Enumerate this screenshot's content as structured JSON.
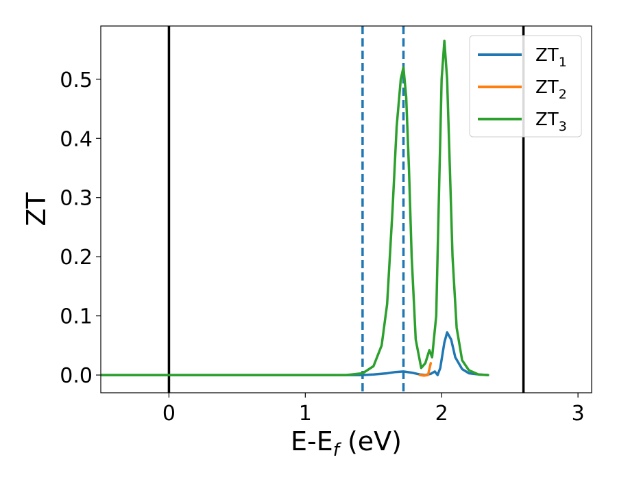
{
  "chart_data": {
    "type": "line",
    "title": "",
    "xlabel": {
      "main": "E-E",
      "sub": "f",
      "unit": " (eV)"
    },
    "ylabel": "ZT",
    "xlim": [
      -0.5,
      3.1
    ],
    "ylim": [
      -0.03,
      0.59
    ],
    "xticks": [
      {
        "value": 0,
        "label": "0"
      },
      {
        "value": 1,
        "label": "1"
      },
      {
        "value": 2,
        "label": "2"
      },
      {
        "value": 3,
        "label": "3"
      }
    ],
    "yticks": [
      {
        "value": 0.0,
        "label": "0.0"
      },
      {
        "value": 0.1,
        "label": "0.1"
      },
      {
        "value": 0.2,
        "label": "0.2"
      },
      {
        "value": 0.3,
        "label": "0.3"
      },
      {
        "value": 0.4,
        "label": "0.4"
      },
      {
        "value": 0.5,
        "label": "0.5"
      }
    ],
    "grid": false,
    "legend_position": "top-right",
    "vertical_lines": [
      {
        "x": 0.0,
        "style": "solid",
        "color": "#000000"
      },
      {
        "x": 1.42,
        "style": "dashed",
        "color": "#1f77b4"
      },
      {
        "x": 1.72,
        "style": "dashed",
        "color": "#1f77b4"
      },
      {
        "x": 2.6,
        "style": "solid",
        "color": "#000000"
      }
    ],
    "series": [
      {
        "name": "ZT",
        "subscript": "1",
        "color": "#1f77b4",
        "x": [
          -0.5,
          0.0,
          0.5,
          1.0,
          1.3,
          1.42,
          1.5,
          1.6,
          1.66,
          1.72,
          1.78,
          1.84,
          1.88,
          1.92,
          1.95,
          1.97,
          1.99,
          2.02,
          2.04,
          2.07,
          2.1,
          2.15,
          2.2,
          2.27,
          2.34
        ],
        "y": [
          0.0,
          0.0,
          0.0,
          0.0,
          0.0,
          0.0,
          0.001,
          0.003,
          0.005,
          0.006,
          0.004,
          0.001,
          0.0,
          0.002,
          0.006,
          0.0,
          0.012,
          0.055,
          0.072,
          0.06,
          0.03,
          0.01,
          0.003,
          0.001,
          0.0
        ]
      },
      {
        "name": "ZT",
        "subscript": "2",
        "color": "#ff7f0e",
        "x": [
          1.84,
          1.87,
          1.9,
          1.92
        ],
        "y": [
          0.0,
          -0.001,
          0.0,
          0.02
        ]
      },
      {
        "name": "ZT",
        "subscript": "3",
        "color": "#2ca02c",
        "x": [
          -0.5,
          0.0,
          0.5,
          1.0,
          1.3,
          1.42,
          1.5,
          1.56,
          1.6,
          1.64,
          1.67,
          1.7,
          1.72,
          1.74,
          1.76,
          1.78,
          1.81,
          1.85,
          1.88,
          1.91,
          1.93,
          1.96,
          1.98,
          2.0,
          2.02,
          2.04,
          2.06,
          2.08,
          2.11,
          2.15,
          2.2,
          2.27,
          2.34
        ],
        "y": [
          0.0,
          0.0,
          0.0,
          0.0,
          0.0,
          0.003,
          0.015,
          0.05,
          0.12,
          0.28,
          0.42,
          0.5,
          0.52,
          0.47,
          0.35,
          0.2,
          0.06,
          0.012,
          0.02,
          0.042,
          0.03,
          0.1,
          0.3,
          0.5,
          0.565,
          0.5,
          0.35,
          0.2,
          0.08,
          0.025,
          0.008,
          0.001,
          0.0
        ]
      }
    ]
  }
}
